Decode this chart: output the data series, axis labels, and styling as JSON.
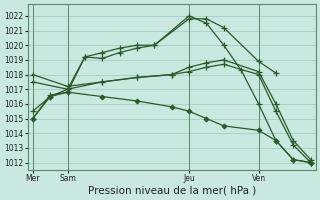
{
  "bg_color": "#c8e8e0",
  "grid_color": "#a0c8c0",
  "line_color": "#2a5a2a",
  "vline_color": "#5a8a70",
  "ylim": [
    1011.5,
    1022.8
  ],
  "yticks": [
    1012,
    1013,
    1014,
    1015,
    1016,
    1017,
    1018,
    1019,
    1020,
    1021,
    1022
  ],
  "xlabel": "Pression niveau de la mer( hPa )",
  "xlabel_fontsize": 7.5,
  "tick_fontsize": 5.5,
  "xtick_labels": [
    "Mer",
    "Sam",
    "Jeu",
    "Ven"
  ],
  "xtick_positions": [
    0,
    2,
    9,
    13
  ],
  "vlines": [
    0,
    2,
    9,
    13
  ],
  "xlim": [
    -0.3,
    16.3
  ],
  "lines": [
    {
      "x": [
        0,
        1,
        2,
        3,
        4,
        5,
        6,
        7,
        9,
        10,
        11,
        13,
        14
      ],
      "y": [
        1015.0,
        1016.6,
        1016.8,
        1019.2,
        1019.1,
        1019.5,
        1019.8,
        1020.0,
        1021.8,
        1021.8,
        1021.2,
        1018.9,
        1018.1
      ],
      "marker": "+"
    },
    {
      "x": [
        0,
        1,
        2,
        3,
        4,
        5,
        6,
        7,
        9,
        10,
        11,
        12,
        13,
        14,
        15,
        16
      ],
      "y": [
        1015.5,
        1016.5,
        1017.0,
        1019.2,
        1019.5,
        1019.8,
        1020.0,
        1020.0,
        1022.0,
        1021.5,
        1020.0,
        1018.3,
        1016.0,
        1013.5,
        1012.2,
        1012.0
      ],
      "marker": "+"
    },
    {
      "x": [
        0,
        2,
        4,
        6,
        8,
        9,
        10,
        11,
        13,
        14,
        15,
        16
      ],
      "y": [
        1018.0,
        1017.2,
        1017.5,
        1017.8,
        1018.0,
        1018.5,
        1018.8,
        1019.0,
        1018.2,
        1016.0,
        1013.5,
        1012.2
      ],
      "marker": "+"
    },
    {
      "x": [
        0,
        2,
        4,
        6,
        8,
        9,
        10,
        11,
        13,
        14,
        15,
        16
      ],
      "y": [
        1017.5,
        1017.0,
        1017.5,
        1017.8,
        1018.0,
        1018.2,
        1018.5,
        1018.7,
        1018.0,
        1015.5,
        1013.2,
        1012.0
      ],
      "marker": "+"
    },
    {
      "x": [
        0,
        1,
        2,
        4,
        6,
        8,
        9,
        10,
        11,
        13,
        14,
        15,
        16
      ],
      "y": [
        1015.0,
        1016.5,
        1016.8,
        1016.5,
        1016.2,
        1015.8,
        1015.5,
        1015.0,
        1014.5,
        1014.2,
        1013.5,
        1012.2,
        1012.0
      ],
      "marker": "D"
    }
  ]
}
